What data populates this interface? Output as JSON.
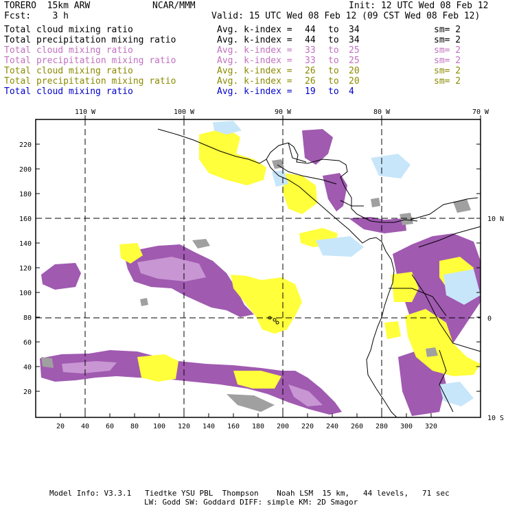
{
  "header": {
    "model": "TORERO  15km ARW",
    "org": "NCAR/MMM",
    "init": "Init: 12 UTC Wed 08 Feb 12",
    "fcst": "Fcst:    3 h",
    "valid": "Valid: 15 UTC Wed 08 Feb 12 (09 CST Wed 08 Feb 12)"
  },
  "legend": [
    {
      "field": "Total cloud mixing ratio",
      "k_label": "Avg. k-index =",
      "k_from": "44",
      "to": "to",
      "k_to": "34",
      "sm": "sm= 2",
      "color": "#000000"
    },
    {
      "field": "Total precipitation mixing ratio",
      "k_label": "Avg. k-index =",
      "k_from": "44",
      "to": "to",
      "k_to": "34",
      "sm": "sm= 2",
      "color": "#000000"
    },
    {
      "field": "Total cloud mixing ratio",
      "k_label": "Avg. k-index =",
      "k_from": "33",
      "to": "to",
      "k_to": "25",
      "sm": "sm= 2",
      "color": "#c070c0"
    },
    {
      "field": "Total precipitation mixing ratio",
      "k_label": "Avg. k-index =",
      "k_from": "33",
      "to": "to",
      "k_to": "25",
      "sm": "sm= 2",
      "color": "#c070c0"
    },
    {
      "field": "Total cloud mixing ratio",
      "k_label": "Avg. k-index =",
      "k_from": "26",
      "to": "to",
      "k_to": "20",
      "sm": "sm= 2",
      "color": "#8a8a00"
    },
    {
      "field": "Total precipitation mixing ratio",
      "k_label": "Avg. k-index =",
      "k_from": "26",
      "to": "to",
      "k_to": "20",
      "sm": "sm= 2",
      "color": "#8a8a00"
    },
    {
      "field": "Total cloud mixing ratio",
      "k_label": "Avg. k-index =",
      "k_from": "19",
      "to": "to",
      "k_to": "4",
      "sm": "",
      "color": "#0000cc"
    }
  ],
  "map": {
    "x_ticks": [
      "20",
      "40",
      "60",
      "80",
      "100",
      "120",
      "140",
      "160",
      "180",
      "200",
      "220",
      "240",
      "260",
      "280",
      "300",
      "320"
    ],
    "y_ticks": [
      "20",
      "40",
      "60",
      "80",
      "100",
      "120",
      "140",
      "160",
      "180",
      "200",
      "220"
    ],
    "lon_labels": [
      "110 W",
      "100 W",
      "90 W",
      "80 W",
      "70 W"
    ],
    "lat_labels": [
      "10 N",
      "0",
      "10 S"
    ],
    "colors": {
      "purple": "#a05ab0",
      "purple_light": "#c896d2",
      "yellow": "#ffff3c",
      "yellow_light": "#fafaaa",
      "lightblue": "#c8e6fa",
      "gray": "#a0a0a0"
    }
  },
  "footer": {
    "line1": "Model Info: V3.3.1   Tiedtke YSU PBL  Thompson    Noah LSM  15 km,   44 levels,   71 sec",
    "line2": "LW: Godd SW: Goddard DIFF: simple KM: 2D Smagor"
  }
}
